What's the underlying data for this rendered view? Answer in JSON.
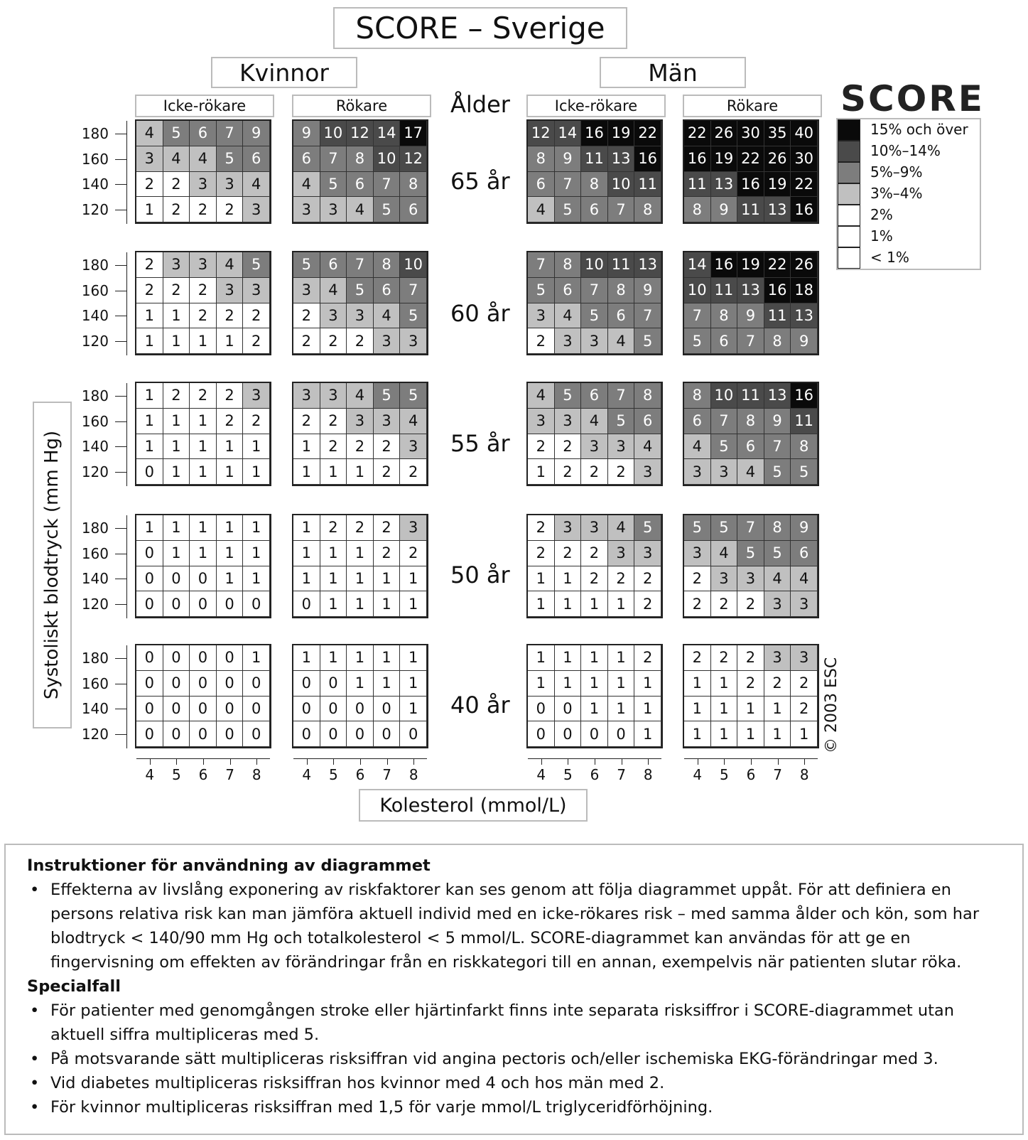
{
  "title": "SCORE – Sverige",
  "sexes": [
    "Kvinnor",
    "Män"
  ],
  "smoking": [
    "Icke-rökare",
    "Rökare",
    "Icke-rökare",
    "Rökare"
  ],
  "age_header": "Ålder",
  "ages": [
    "65 år",
    "60 år",
    "55 år",
    "50 år",
    "40 år"
  ],
  "bp_labels": [
    "180",
    "160",
    "140",
    "120"
  ],
  "chol_labels": [
    "4",
    "5",
    "6",
    "7",
    "8"
  ],
  "ylabel": "Systoliskt blodtryck (mm Hg)",
  "xlabel": "Kolesterol (mmol/L)",
  "copyright": "© 2003 ESC",
  "legend": {
    "logo": "SCORE",
    "items": [
      {
        "label": "15% och över",
        "color": "#0a0a0a"
      },
      {
        "label": "10%–14%",
        "color": "#4a4a4a"
      },
      {
        "label": "5%–9%",
        "color": "#7d7d7d"
      },
      {
        "label": "3%–4%",
        "color": "#c0c0c0"
      },
      {
        "label": "2%",
        "color": "#ffffff"
      },
      {
        "label": "1%",
        "color": "#ffffff"
      },
      {
        "label": "< 1%",
        "color": "#ffffff"
      }
    ]
  },
  "chart_data": {
    "type": "table",
    "title": "SCORE – Sverige",
    "xlabel": "Kolesterol (mmol/L)",
    "ylabel": "Systoliskt blodtryck (mm Hg)",
    "panels_order": "ages [65,60,55,50,40] x groups [Kvinnor Icke-rökare, Kvinnor Rökare, Män Icke-rökare, Män Rökare]; rows SBP 180..120, cols cholesterol 4..8",
    "values": [
      [
        [
          [
            4,
            5,
            6,
            7,
            9
          ],
          [
            3,
            4,
            4,
            5,
            6
          ],
          [
            2,
            2,
            3,
            3,
            4
          ],
          [
            1,
            2,
            2,
            2,
            3
          ]
        ],
        [
          [
            9,
            10,
            12,
            14,
            17
          ],
          [
            6,
            7,
            8,
            10,
            12
          ],
          [
            4,
            5,
            6,
            7,
            8
          ],
          [
            3,
            3,
            4,
            5,
            6
          ]
        ],
        [
          [
            12,
            14,
            16,
            19,
            22
          ],
          [
            8,
            9,
            11,
            13,
            16
          ],
          [
            6,
            7,
            8,
            10,
            11
          ],
          [
            4,
            5,
            6,
            7,
            8
          ]
        ],
        [
          [
            22,
            26,
            30,
            35,
            40
          ],
          [
            16,
            19,
            22,
            26,
            30
          ],
          [
            11,
            13,
            16,
            19,
            22
          ],
          [
            8,
            9,
            11,
            13,
            16
          ]
        ]
      ],
      [
        [
          [
            2,
            3,
            3,
            4,
            5
          ],
          [
            2,
            2,
            2,
            3,
            3
          ],
          [
            1,
            1,
            2,
            2,
            2
          ],
          [
            1,
            1,
            1,
            1,
            2
          ]
        ],
        [
          [
            5,
            6,
            7,
            8,
            10
          ],
          [
            3,
            4,
            5,
            6,
            7
          ],
          [
            2,
            3,
            3,
            4,
            5
          ],
          [
            2,
            2,
            2,
            3,
            3
          ]
        ],
        [
          [
            7,
            8,
            10,
            11,
            13
          ],
          [
            5,
            6,
            7,
            8,
            9
          ],
          [
            3,
            4,
            5,
            6,
            7
          ],
          [
            2,
            3,
            3,
            4,
            5
          ]
        ],
        [
          [
            14,
            16,
            19,
            22,
            26
          ],
          [
            10,
            11,
            13,
            16,
            18
          ],
          [
            7,
            8,
            9,
            11,
            13
          ],
          [
            5,
            6,
            7,
            8,
            9
          ]
        ]
      ],
      [
        [
          [
            1,
            2,
            2,
            2,
            3
          ],
          [
            1,
            1,
            1,
            2,
            2
          ],
          [
            1,
            1,
            1,
            1,
            1
          ],
          [
            0,
            1,
            1,
            1,
            1
          ]
        ],
        [
          [
            3,
            3,
            4,
            5,
            5
          ],
          [
            2,
            2,
            3,
            3,
            4
          ],
          [
            1,
            2,
            2,
            2,
            3
          ],
          [
            1,
            1,
            1,
            2,
            2
          ]
        ],
        [
          [
            4,
            5,
            6,
            7,
            8
          ],
          [
            3,
            3,
            4,
            5,
            6
          ],
          [
            2,
            2,
            3,
            3,
            4
          ],
          [
            1,
            2,
            2,
            2,
            3
          ]
        ],
        [
          [
            8,
            10,
            11,
            13,
            16
          ],
          [
            6,
            7,
            8,
            9,
            11
          ],
          [
            4,
            5,
            6,
            7,
            8
          ],
          [
            3,
            3,
            4,
            5,
            5
          ]
        ]
      ],
      [
        [
          [
            1,
            1,
            1,
            1,
            1
          ],
          [
            0,
            1,
            1,
            1,
            1
          ],
          [
            0,
            0,
            0,
            1,
            1
          ],
          [
            0,
            0,
            0,
            0,
            0
          ]
        ],
        [
          [
            1,
            2,
            2,
            2,
            3
          ],
          [
            1,
            1,
            1,
            2,
            2
          ],
          [
            1,
            1,
            1,
            1,
            1
          ],
          [
            0,
            1,
            1,
            1,
            1
          ]
        ],
        [
          [
            2,
            3,
            3,
            4,
            5
          ],
          [
            2,
            2,
            2,
            3,
            3
          ],
          [
            1,
            1,
            2,
            2,
            2
          ],
          [
            1,
            1,
            1,
            1,
            2
          ]
        ],
        [
          [
            5,
            5,
            7,
            8,
            9
          ],
          [
            3,
            4,
            5,
            5,
            6
          ],
          [
            2,
            3,
            3,
            4,
            4
          ],
          [
            2,
            2,
            2,
            3,
            3
          ]
        ]
      ],
      [
        [
          [
            0,
            0,
            0,
            0,
            1
          ],
          [
            0,
            0,
            0,
            0,
            0
          ],
          [
            0,
            0,
            0,
            0,
            0
          ],
          [
            0,
            0,
            0,
            0,
            0
          ]
        ],
        [
          [
            1,
            1,
            1,
            1,
            1
          ],
          [
            0,
            0,
            1,
            1,
            1
          ],
          [
            0,
            0,
            0,
            0,
            1
          ],
          [
            0,
            0,
            0,
            0,
            0
          ]
        ],
        [
          [
            1,
            1,
            1,
            1,
            2
          ],
          [
            1,
            1,
            1,
            1,
            1
          ],
          [
            0,
            0,
            1,
            1,
            1
          ],
          [
            0,
            0,
            0,
            0,
            1
          ]
        ],
        [
          [
            2,
            2,
            2,
            3,
            3
          ],
          [
            1,
            1,
            2,
            2,
            2
          ],
          [
            1,
            1,
            1,
            1,
            2
          ],
          [
            1,
            1,
            1,
            1,
            1
          ]
        ]
      ]
    ]
  },
  "notes": {
    "heading1": "Instruktioner för användning av diagrammet",
    "bullets1": [
      "Effekterna av livslång exponering av riskfaktorer kan ses genom att följa diagrammet uppåt. För att definiera en persons relativa risk kan man jämföra aktuell individ med en icke-rökares risk – med samma ålder och kön, som har blodtryck < 140/90 mm Hg och totalkolesterol < 5 mmol/L. SCORE-diagrammet kan användas för att ge en fingervisning om effekten av förändringar från en riskkategori till en annan, exempelvis när patienten slutar röka."
    ],
    "heading2": "Specialfall",
    "bullets2": [
      "För patienter med genomgången stroke eller hjärtinfarkt finns inte separata risksiffror i SCORE-diagrammet utan aktuell siffra multipliceras med 5.",
      "På motsvarande sätt multipliceras risksiffran vid angina pectoris och/eller ischemiska EKG-förändringar med 3.",
      "Vid diabetes multipliceras risksiffran hos kvinnor med 4 och hos män med 2.",
      "För kvinnor multipliceras risksiffran med 1,5 för varje mmol/L triglyceridförhöjning."
    ]
  }
}
